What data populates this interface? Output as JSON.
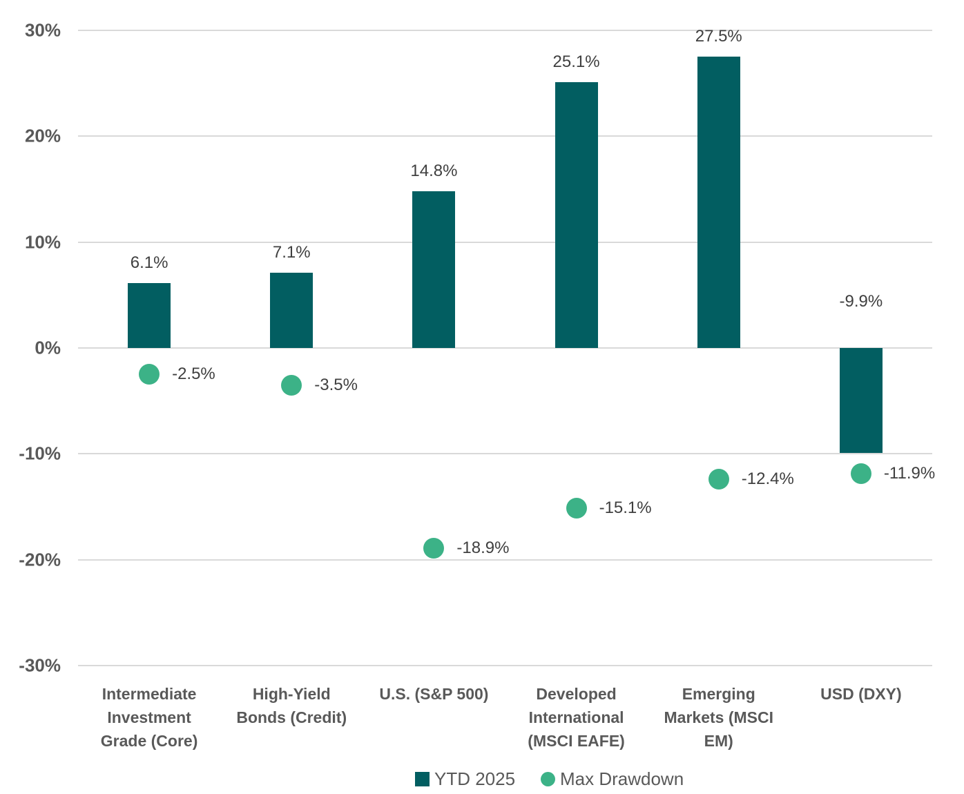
{
  "chart_data": {
    "type": "bar",
    "title": "",
    "xlabel": "",
    "ylabel": "",
    "categories": [
      "Intermediate Investment Grade (Core)",
      "High-Yield Bonds (Credit)",
      "U.S. (S&P 500)",
      "Developed International (MSCI EAFE)",
      "Emerging Markets (MSCI EM)",
      "USD (DXY)"
    ],
    "category_lines": [
      [
        "Intermediate",
        "Investment",
        "Grade (Core)"
      ],
      [
        "High-Yield",
        "Bonds (Credit)"
      ],
      [
        "U.S. (S&P 500)"
      ],
      [
        "Developed",
        "International",
        "(MSCI EAFE)"
      ],
      [
        "Emerging",
        "Markets (MSCI",
        "EM)"
      ],
      [
        "USD (DXY)"
      ]
    ],
    "series": [
      {
        "name": "YTD 2025",
        "type": "bar",
        "color": "#025E61",
        "values": [
          6.1,
          7.1,
          14.8,
          25.1,
          27.5,
          -9.9
        ],
        "labels": [
          "6.1%",
          "7.1%",
          "14.8%",
          "25.1%",
          "27.5%",
          "-9.9%"
        ]
      },
      {
        "name": "Max Drawdown",
        "type": "scatter",
        "color": "#3CB287",
        "values": [
          -2.5,
          -3.5,
          -18.9,
          -15.1,
          -12.4,
          -11.9
        ],
        "labels": [
          "-2.5%",
          "-3.5%",
          "-18.9%",
          "-15.1%",
          "-12.4%",
          "-11.9%"
        ]
      }
    ],
    "y_axis": {
      "min": -30,
      "max": 30,
      "ticks": [
        {
          "value": 30,
          "label": "30%"
        },
        {
          "value": 20,
          "label": "20%"
        },
        {
          "value": 10,
          "label": "10%"
        },
        {
          "value": 0,
          "label": "0%"
        },
        {
          "value": -10,
          "label": "-10%"
        },
        {
          "value": -20,
          "label": "-20%"
        },
        {
          "value": -30,
          "label": "-30%"
        }
      ]
    },
    "grid": true,
    "legend": {
      "position": "bottom",
      "entries": [
        {
          "label": "YTD 2025",
          "marker": "square",
          "color": "#025E61"
        },
        {
          "label": "Max Drawdown",
          "marker": "circle",
          "color": "#3CB287"
        }
      ]
    },
    "colors": {
      "gridline": "#D9D9D9",
      "axis_text": "#595959",
      "value_label_text": "#3F3F3F",
      "background": "#FFFFFF"
    }
  }
}
